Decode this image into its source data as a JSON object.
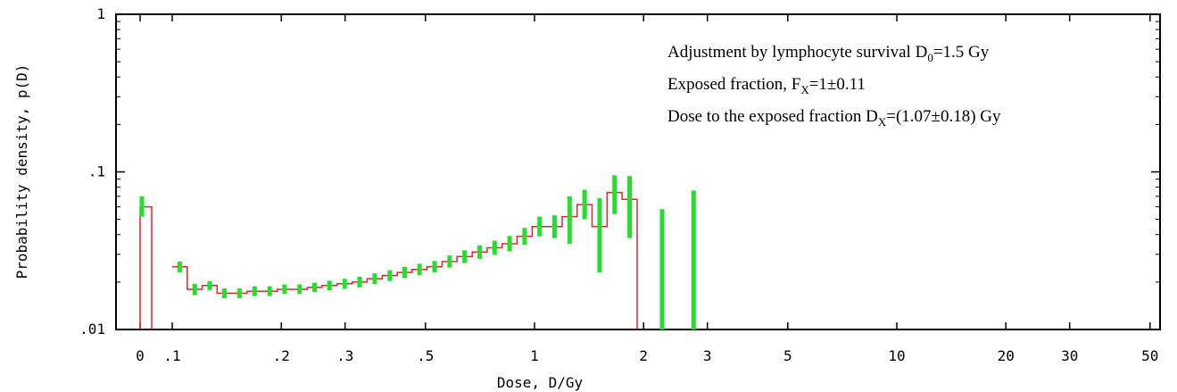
{
  "chart_data": {
    "type": "histogram-with-errorbars",
    "xlabel": "Dose, D/Gy",
    "ylabel": "Probability density, p(D)",
    "x_scale": "log",
    "y_scale": "log",
    "x_tick_labels": [
      "0",
      ".1",
      ".2",
      ".3",
      ".5",
      "1",
      "2",
      "3",
      "5",
      "10",
      "20",
      "30",
      "50"
    ],
    "x_tick_values": [
      0,
      0.1,
      0.2,
      0.3,
      0.5,
      1,
      2,
      3,
      5,
      10,
      20,
      30,
      50
    ],
    "y_tick_labels": [
      "1",
      ".1",
      ".01"
    ],
    "y_tick_values": [
      1,
      0.1,
      0.01
    ],
    "ylim": [
      0.01,
      1
    ],
    "zero_dose_bin": {
      "x": 0,
      "p": 0.06,
      "err_low": 0.052,
      "err_high": 0.07
    },
    "bins": [
      {
        "x": 0.1,
        "p": 0.025,
        "err_low": 0.023,
        "err_high": 0.027
      },
      {
        "x": 0.11,
        "p": 0.018,
        "err_low": 0.0165,
        "err_high": 0.0195
      },
      {
        "x": 0.121,
        "p": 0.019,
        "err_low": 0.0178,
        "err_high": 0.0203
      },
      {
        "x": 0.133,
        "p": 0.017,
        "err_low": 0.0158,
        "err_high": 0.0182
      },
      {
        "x": 0.146,
        "p": 0.017,
        "err_low": 0.0158,
        "err_high": 0.0182
      },
      {
        "x": 0.161,
        "p": 0.0175,
        "err_low": 0.0163,
        "err_high": 0.0188
      },
      {
        "x": 0.177,
        "p": 0.0175,
        "err_low": 0.0163,
        "err_high": 0.0188
      },
      {
        "x": 0.195,
        "p": 0.018,
        "err_low": 0.0168,
        "err_high": 0.0193
      },
      {
        "x": 0.214,
        "p": 0.018,
        "err_low": 0.0168,
        "err_high": 0.0193
      },
      {
        "x": 0.236,
        "p": 0.0185,
        "err_low": 0.0173,
        "err_high": 0.0198
      },
      {
        "x": 0.259,
        "p": 0.019,
        "err_low": 0.0177,
        "err_high": 0.0204
      },
      {
        "x": 0.285,
        "p": 0.0195,
        "err_low": 0.0181,
        "err_high": 0.021
      },
      {
        "x": 0.314,
        "p": 0.02,
        "err_low": 0.0185,
        "err_high": 0.0216
      },
      {
        "x": 0.345,
        "p": 0.021,
        "err_low": 0.0194,
        "err_high": 0.0227
      },
      {
        "x": 0.38,
        "p": 0.022,
        "err_low": 0.0203,
        "err_high": 0.0238
      },
      {
        "x": 0.418,
        "p": 0.023,
        "err_low": 0.0212,
        "err_high": 0.025
      },
      {
        "x": 0.459,
        "p": 0.024,
        "err_low": 0.0221,
        "err_high": 0.0261
      },
      {
        "x": 0.505,
        "p": 0.025,
        "err_low": 0.023,
        "err_high": 0.0272
      },
      {
        "x": 0.556,
        "p": 0.027,
        "err_low": 0.0247,
        "err_high": 0.0295
      },
      {
        "x": 0.611,
        "p": 0.029,
        "err_low": 0.0264,
        "err_high": 0.0318
      },
      {
        "x": 0.673,
        "p": 0.031,
        "err_low": 0.0281,
        "err_high": 0.0342
      },
      {
        "x": 0.74,
        "p": 0.033,
        "err_low": 0.0298,
        "err_high": 0.0366
      },
      {
        "x": 0.814,
        "p": 0.035,
        "err_low": 0.0313,
        "err_high": 0.0392
      },
      {
        "x": 0.895,
        "p": 0.039,
        "err_low": 0.0345,
        "err_high": 0.0441
      },
      {
        "x": 0.985,
        "p": 0.045,
        "err_low": 0.039,
        "err_high": 0.052
      },
      {
        "x": 1.083,
        "p": 0.045,
        "err_low": 0.038,
        "err_high": 0.053
      },
      {
        "x": 1.192,
        "p": 0.052,
        "err_low": 0.035,
        "err_high": 0.07
      },
      {
        "x": 1.311,
        "p": 0.062,
        "err_low": 0.05,
        "err_high": 0.077
      },
      {
        "x": 1.442,
        "p": 0.045,
        "err_low": 0.023,
        "err_high": 0.068
      },
      {
        "x": 1.586,
        "p": 0.074,
        "err_low": 0.054,
        "err_high": 0.095
      },
      {
        "x": 1.745,
        "p": 0.067,
        "err_low": 0.038,
        "err_high": 0.094
      },
      {
        "x": 1.92,
        "p": 0.01,
        "err_low": null,
        "err_high": null
      }
    ],
    "extra_errorbars": [
      {
        "x": 2.25,
        "err_low": 0.0,
        "err_high": 0.058
      },
      {
        "x": 2.75,
        "err_low": 0.0,
        "err_high": 0.076
      }
    ],
    "annotations": [
      {
        "main": "Adjustment by lymphocyte survival D",
        "sub": "0",
        "tail": "=1.5 Gy"
      },
      {
        "main": "Exposed fraction, F",
        "sub": "X",
        "tail": "=1±0.11"
      },
      {
        "main": "Dose to the exposed fraction D",
        "sub": "X",
        "tail": "=(1.07±0.18)  Gy"
      }
    ],
    "colors": {
      "histogram": "#e8232b",
      "errorbars": "#22e02c",
      "axes": "#000000"
    }
  }
}
